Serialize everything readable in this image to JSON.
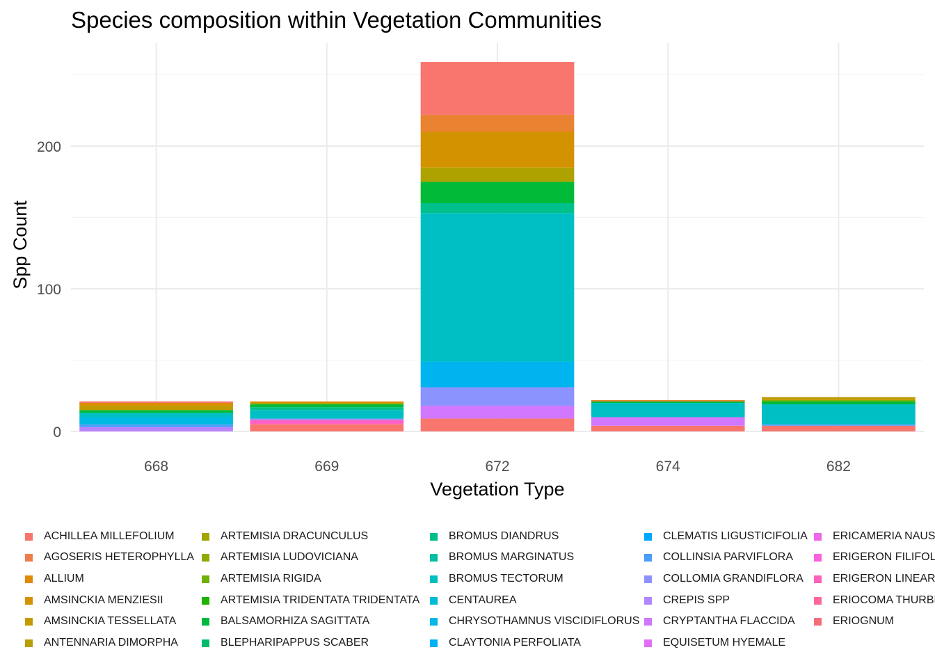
{
  "chart_data": {
    "type": "bar",
    "stacked": true,
    "title": "Species composition within Vegetation Communities",
    "xlabel": "Vegetation Type",
    "ylabel": "Spp Count",
    "categories": [
      "668",
      "669",
      "672",
      "674",
      "682"
    ],
    "ylim": [
      0,
      260
    ],
    "yticks": [
      0,
      100,
      200
    ],
    "grid": true,
    "legend_position": "bottom",
    "stacks": [
      [
        {
          "series": "CREPIS SPP",
          "value": 3,
          "color": "#B983FF"
        },
        {
          "series": "COLLINSIA PARVIFLORA",
          "value": 2,
          "color": "#4AA0F5"
        },
        {
          "series": "CHRYSOTHAMNUS VISCIDIFLORUS",
          "value": 5,
          "color": "#00B9E3"
        },
        {
          "series": "BROMUS TECTORUM",
          "value": 3,
          "color": "#00BFC4"
        },
        {
          "series": "ARTEMISIA TRIDENTATA TRIDENTATA",
          "value": 2,
          "color": "#00BA38"
        },
        {
          "series": "AMSINCKIA TESSELLATA",
          "value": 3,
          "color": "#C09B00"
        },
        {
          "series": "ALLIUM",
          "value": 2,
          "color": "#DB8E00"
        },
        {
          "series": "ACHILLEA MILLEFOLIUM",
          "value": 1,
          "color": "#F8766D"
        }
      ],
      [
        {
          "series": "ERIOGNUM",
          "value": 5,
          "color": "#F8766D"
        },
        {
          "series": "ERIGERON FILIFOLIUS",
          "value": 3,
          "color": "#FF61C3"
        },
        {
          "series": "COLLOMIA GRANDIFLORA",
          "value": 1,
          "color": "#8B93FF"
        },
        {
          "series": "BROMUS TECTORUM",
          "value": 6,
          "color": "#00BFC4"
        },
        {
          "series": "BLEPHARIPAPPUS SCABER",
          "value": 2,
          "color": "#00C08B"
        },
        {
          "series": "ARTEMISIA TRIDENTATA TRIDENTATA",
          "value": 2,
          "color": "#00BA38"
        },
        {
          "series": "ARTEMISIA DRACUNCULUS",
          "value": 1,
          "color": "#AEA200"
        },
        {
          "series": "ALLIUM",
          "value": 1,
          "color": "#DB8E00"
        }
      ],
      [
        {
          "series": "ERIOGNUM",
          "value": 9,
          "color": "#F8766D"
        },
        {
          "series": "CRYPTANTHA FLACCIDA",
          "value": 9,
          "color": "#D277FF"
        },
        {
          "series": "COLLOMIA GRANDIFLORA",
          "value": 13,
          "color": "#8B93FF"
        },
        {
          "series": "CLEMATIS LIGUSTICIFOLIA",
          "value": 18,
          "color": "#00B4EF"
        },
        {
          "series": "BROMUS TECTORUM",
          "value": 104,
          "color": "#00BFC4"
        },
        {
          "series": "BLEPHARIPAPPUS SCABER",
          "value": 7,
          "color": "#00C08B"
        },
        {
          "series": "ARTEMISIA TRIDENTATA TRIDENTATA",
          "value": 15,
          "color": "#00BA38"
        },
        {
          "series": "ARTEMISIA DRACUNCULUS",
          "value": 10,
          "color": "#AEA200"
        },
        {
          "series": "AMSINCKIA MENZIESII",
          "value": 25,
          "color": "#D39200"
        },
        {
          "series": "AGOSERIS HETEROPHYLLA",
          "value": 12,
          "color": "#EA8331"
        },
        {
          "series": "ACHILLEA MILLEFOLIUM",
          "value": 37,
          "color": "#F8766D"
        }
      ],
      [
        {
          "series": "ERIOGNUM",
          "value": 4,
          "color": "#F8766D"
        },
        {
          "series": "CRYPTANTHA FLACCIDA",
          "value": 6,
          "color": "#D277FF"
        },
        {
          "series": "BROMUS TECTORUM",
          "value": 10,
          "color": "#00BFC4"
        },
        {
          "series": "ARTEMISIA TRIDENTATA TRIDENTATA",
          "value": 1,
          "color": "#00BA38"
        },
        {
          "series": "AGOSERIS HETEROPHYLLA",
          "value": 1,
          "color": "#EA8331"
        }
      ],
      [
        {
          "series": "ERIOGNUM",
          "value": 4,
          "color": "#F8766D"
        },
        {
          "series": "COLLINSIA PARVIFLORA",
          "value": 1,
          "color": "#4AA0F5"
        },
        {
          "series": "BROMUS TECTORUM",
          "value": 14,
          "color": "#00BFC4"
        },
        {
          "series": "ARTEMISIA TRIDENTATA TRIDENTATA",
          "value": 2,
          "color": "#00BA38"
        },
        {
          "series": "ARTEMISIA RIGIDA",
          "value": 1,
          "color": "#7CAE00"
        },
        {
          "series": "AMSINCKIA TESSELLATA",
          "value": 2,
          "color": "#C09B00"
        }
      ]
    ],
    "legend": [
      {
        "name": "ACHILLEA MILLEFOLIUM",
        "color": "#F8766D"
      },
      {
        "name": "AGOSERIS HETEROPHYLLA",
        "color": "#EE7C48"
      },
      {
        "name": "ALLIUM",
        "color": "#E38900"
      },
      {
        "name": "AMSINCKIA MENZIESII",
        "color": "#D39200"
      },
      {
        "name": "AMSINCKIA TESSELLATA",
        "color": "#C49A00"
      },
      {
        "name": "ANTENNARIA DIMORPHA",
        "color": "#B79F00"
      },
      {
        "name": "ARTEMISIA DRACUNCULUS",
        "color": "#A3A500"
      },
      {
        "name": "ARTEMISIA LUDOVICIANA",
        "color": "#8DAB00"
      },
      {
        "name": "ARTEMISIA RIGIDA",
        "color": "#6FB000"
      },
      {
        "name": "ARTEMISIA TRIDENTATA TRIDENTATA",
        "color": "#1DB300"
      },
      {
        "name": "BALSAMORHIZA SAGITTATA",
        "color": "#00B83F"
      },
      {
        "name": "BLEPHARIPAPPUS SCABER",
        "color": "#00BB6B"
      },
      {
        "name": "BROMUS DIANDRUS",
        "color": "#00BD8A"
      },
      {
        "name": "BROMUS MARGINATUS",
        "color": "#00BFA5"
      },
      {
        "name": "BROMUS TECTORUM",
        "color": "#00BFC0"
      },
      {
        "name": "CENTAUREA",
        "color": "#00BBD6"
      },
      {
        "name": "CHRYSOTHAMNUS VISCIDIFLORUS",
        "color": "#00B7E8"
      },
      {
        "name": "CLAYTONIA PERFOLIATA",
        "color": "#00B0F6"
      },
      {
        "name": "CLEMATIS LIGUSTICIFOLIA",
        "color": "#00A8FF"
      },
      {
        "name": "COLLINSIA PARVIFLORA",
        "color": "#4A9DF8"
      },
      {
        "name": "COLLOMIA GRANDIFLORA",
        "color": "#8F91FF"
      },
      {
        "name": "CREPIS SPP",
        "color": "#B385FF"
      },
      {
        "name": "CRYPTANTHA FLACCIDA",
        "color": "#CF78FF"
      },
      {
        "name": "EQUISETUM HYEMALE",
        "color": "#E36EF6"
      },
      {
        "name": "ERICAMERIA NAUSEOSA",
        "color": "#F066EA"
      },
      {
        "name": "ERIGERON FILIFOLIUS",
        "color": "#F962DD"
      },
      {
        "name": "ERIGERON LINEARIS",
        "color": "#FF62BC"
      },
      {
        "name": "ERIOCOMA THURBERIANA",
        "color": "#FF6A98"
      },
      {
        "name": "ERIOGNUM",
        "color": "#F66D7A"
      }
    ]
  }
}
